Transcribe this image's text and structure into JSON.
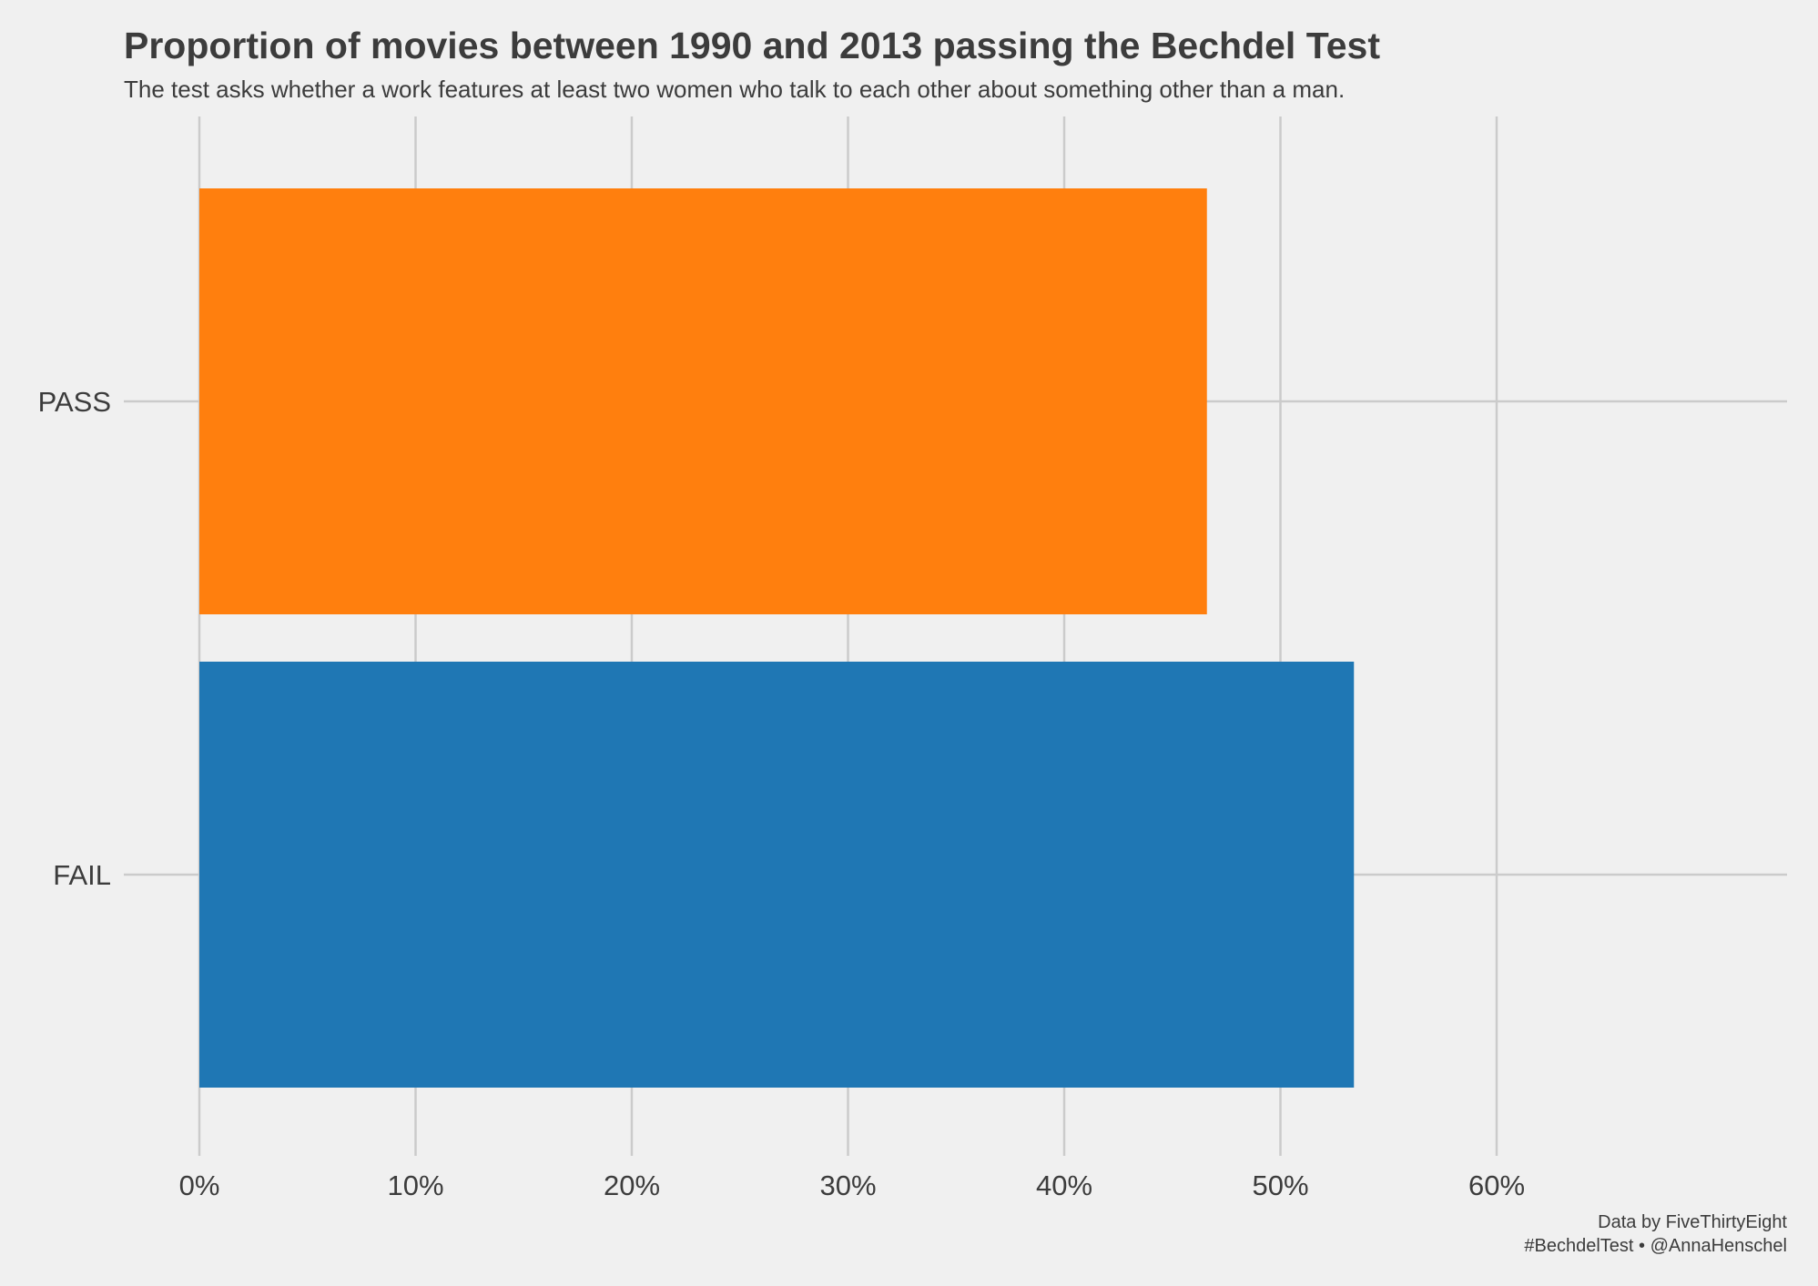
{
  "chart_data": {
    "type": "bar",
    "orientation": "horizontal",
    "title": "Proportion of movies between 1990 and 2013 passing the Bechdel Test",
    "subtitle": "The test asks whether a work features at least two women who talk to each other about something other than a man.",
    "categories": [
      "PASS",
      "FAIL"
    ],
    "values": [
      46.6,
      53.4
    ],
    "colors": [
      "#ff7f0e",
      "#1f77b4"
    ],
    "xlabel": "",
    "ylabel": "",
    "xlim": [
      0,
      73.5
    ],
    "xticks": [
      0,
      10,
      20,
      30,
      40,
      50,
      60
    ],
    "xtick_labels": [
      "0%",
      "10%",
      "20%",
      "30%",
      "40%",
      "50%",
      "60%"
    ],
    "grid": true,
    "legend": "none",
    "credits": [
      "Data by FiveThirtyEight",
      "#BechdelTest • @AnnaHenschel"
    ]
  }
}
